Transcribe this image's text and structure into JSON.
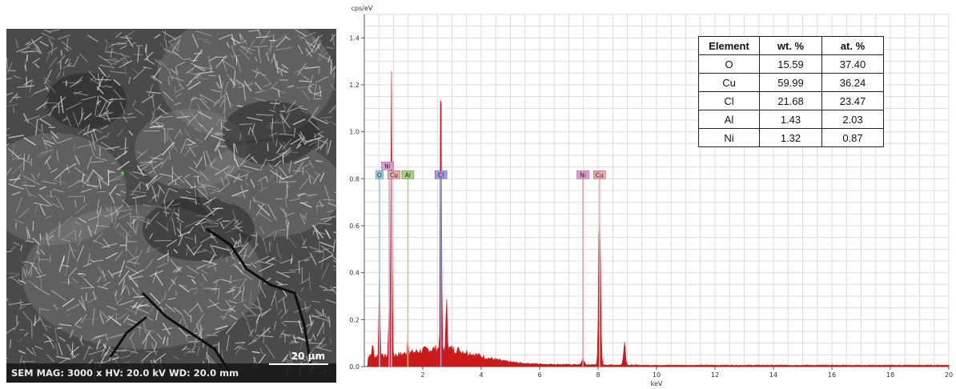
{
  "sem": {
    "caption": "SEM  MAG: 3000 x  HV: 20.0 kV  WD: 20.0 mm",
    "scale_bar_label": "20 µm"
  },
  "chart_data": {
    "type": "line",
    "title": "",
    "xlabel": "keV",
    "ylabel": "cps/eV",
    "xlim": [
      0,
      20
    ],
    "ylim": [
      0,
      1.5
    ],
    "x_ticks": [
      "2",
      "4",
      "6",
      "8",
      "10",
      "12",
      "14",
      "16",
      "18",
      "20"
    ],
    "y_ticks": [
      "0.0",
      "0.2",
      "0.4",
      "0.6",
      "0.8",
      "1.0",
      "1.2",
      "1.4"
    ],
    "grid": true,
    "series_color": "#cc1a1a",
    "peaks": [
      {
        "x": 0.28,
        "y": 0.06
      },
      {
        "x": 0.52,
        "y": 0.4
      },
      {
        "x": 0.85,
        "y": 0.25
      },
      {
        "x": 0.93,
        "y": 1.25
      },
      {
        "x": 1.49,
        "y": 0.08
      },
      {
        "x": 2.62,
        "y": 1.22
      },
      {
        "x": 2.82,
        "y": 0.25
      },
      {
        "x": 7.48,
        "y": 0.03
      },
      {
        "x": 8.05,
        "y": 0.56
      },
      {
        "x": 8.9,
        "y": 0.1
      }
    ],
    "markers": [
      {
        "label": "O",
        "x": 0.52,
        "color": "#8fd0e6"
      },
      {
        "label": "Ni",
        "x": 0.85,
        "color": "#e69ad8"
      },
      {
        "label": "Cu",
        "x": 0.93,
        "color": "#f0a8a8"
      },
      {
        "label": "Al",
        "x": 1.49,
        "color": "#a8d878"
      },
      {
        "label": "Cl",
        "x": 2.62,
        "color": "#a89ae0"
      },
      {
        "label": "Ni",
        "x": 7.48,
        "color": "#e69ad8"
      },
      {
        "label": "Cu",
        "x": 8.05,
        "color": "#f0a8a8"
      }
    ],
    "table": {
      "headers": [
        "Element",
        "wt. %",
        "at. %"
      ],
      "rows": [
        [
          "O",
          "15.59",
          "37.40"
        ],
        [
          "Cu",
          "59.99",
          "36.24"
        ],
        [
          "Cl",
          "21.68",
          "23.47"
        ],
        [
          "Al",
          "1.43",
          "2.03"
        ],
        [
          "Ni",
          "1.32",
          "0.87"
        ]
      ]
    }
  }
}
